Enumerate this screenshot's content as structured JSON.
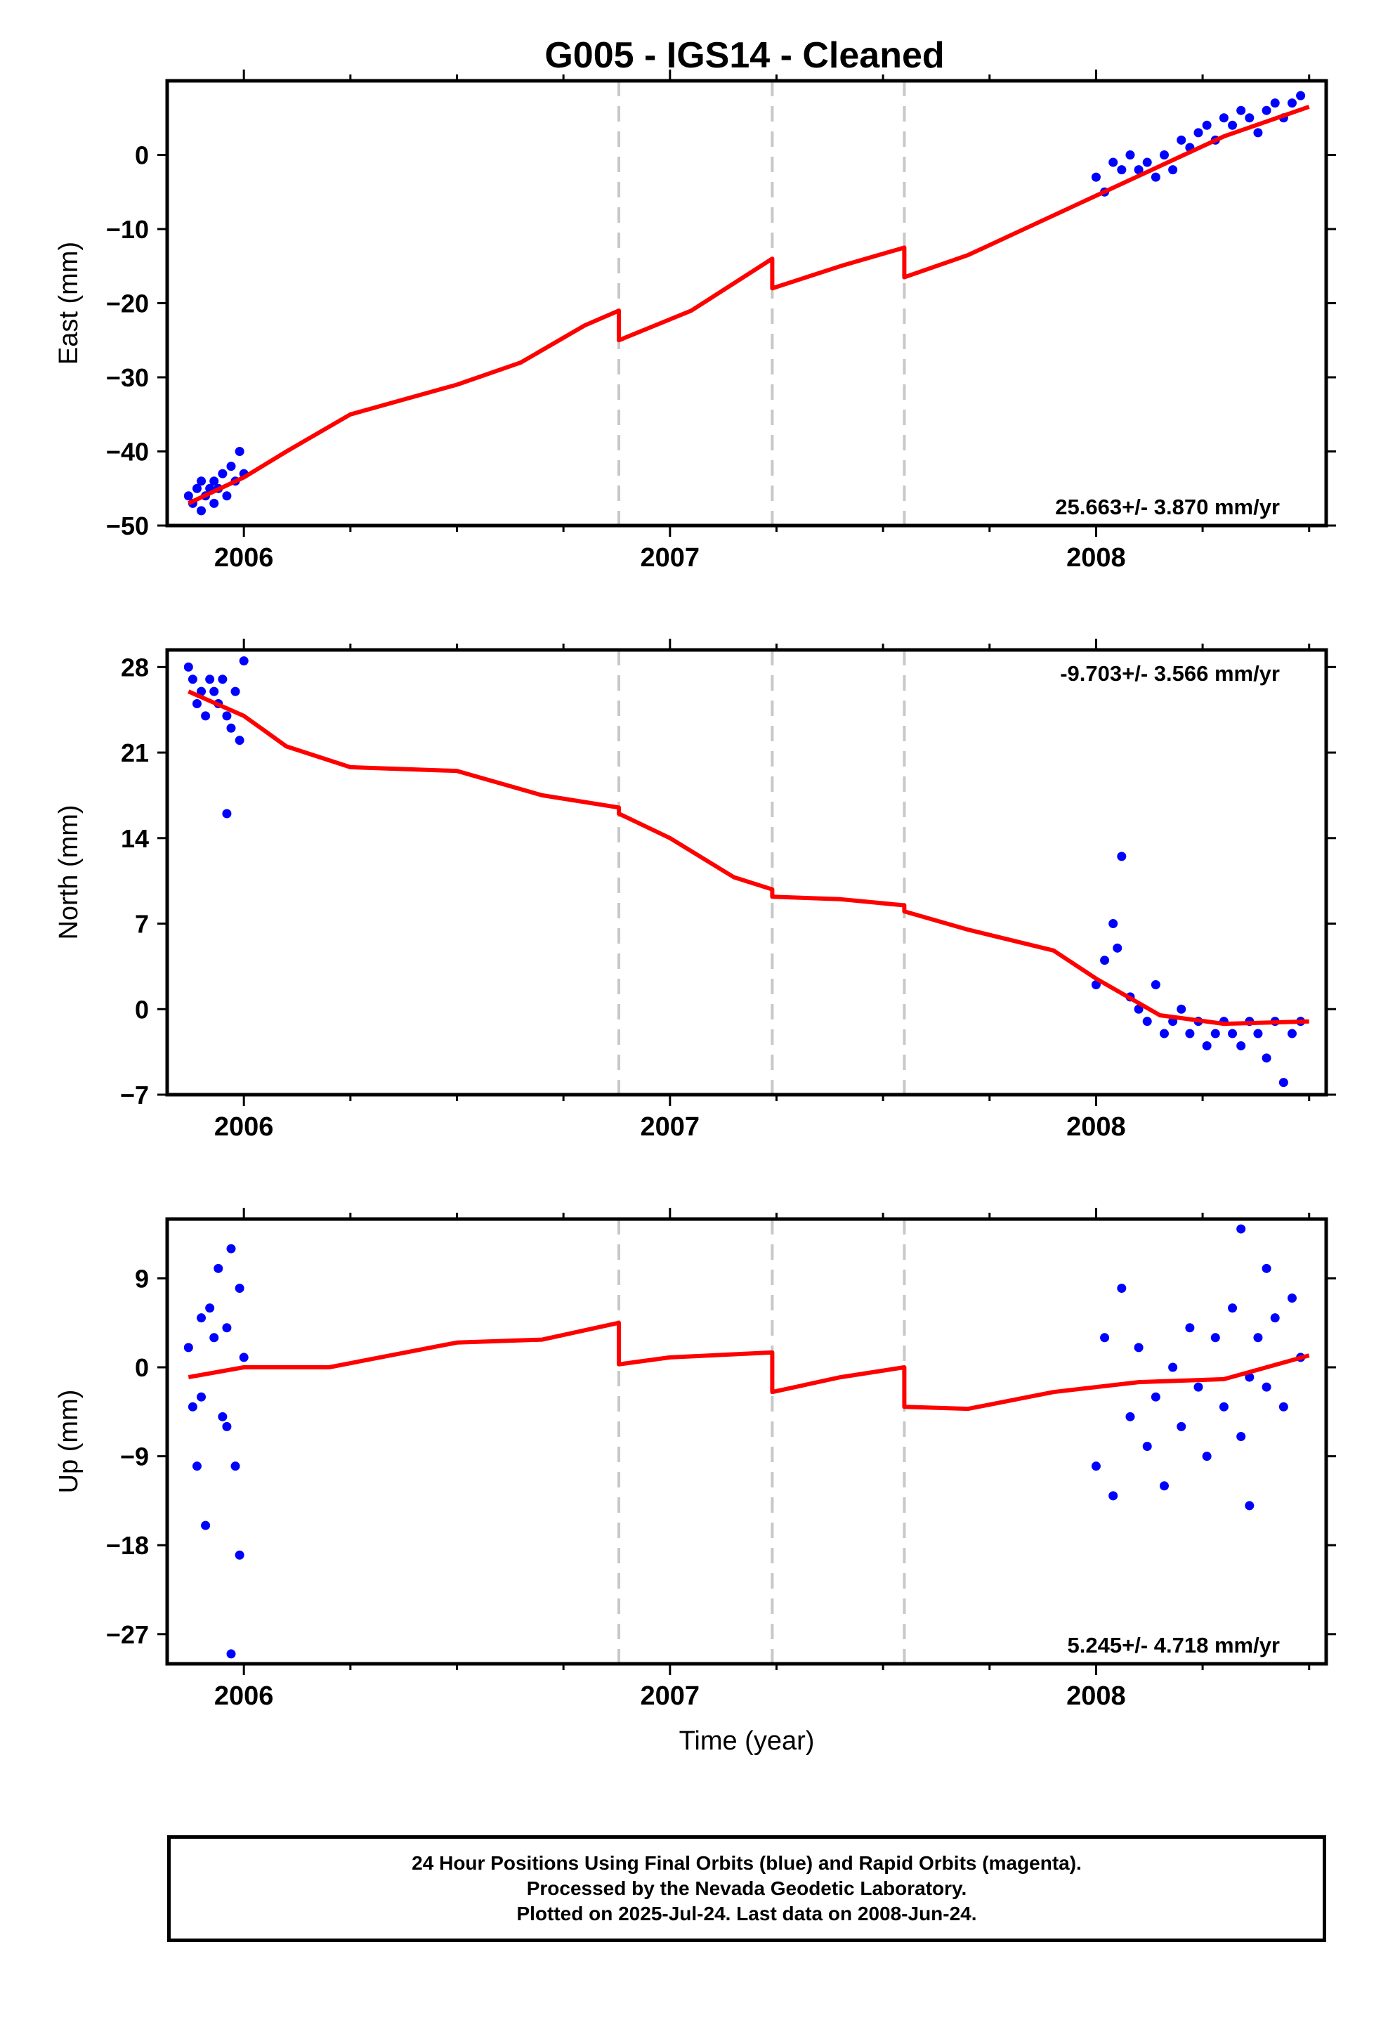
{
  "title": "G005  - IGS14 - Cleaned",
  "colors": {
    "observations": "#0000ff",
    "model": "#ff0000",
    "events": "#c8c8c8",
    "frame": "#000000"
  },
  "footer": {
    "line1": "24 Hour Positions Using Final Orbits (blue) and Rapid Orbits (magenta).",
    "line2": "Processed by the Nevada Geodetic Laboratory.",
    "line3": "Plotted on 2025-Jul-24. Last data on 2008-Jun-24."
  },
  "chart_data": [
    {
      "type": "scatter",
      "ylabel": "East (mm)",
      "xlabel": "",
      "xlim": [
        2005.82,
        2008.54
      ],
      "ylim": [
        -50,
        10
      ],
      "yticks": [
        -50,
        -40,
        -30,
        -20,
        -10,
        0
      ],
      "xticks": [
        2006,
        2007,
        2008
      ],
      "xtick_labels": [
        "2006",
        "2007",
        "2008"
      ],
      "event_lines": [
        2006.88,
        2007.24,
        2007.55
      ],
      "rate_label": "25.663+/- 3.870 mm/yr",
      "rate_label_position": "bottom-right",
      "series": [
        {
          "kind": "observations",
          "x": [
            2005.87,
            2005.88,
            2005.89,
            2005.9,
            2005.9,
            2005.91,
            2005.92,
            2005.93,
            2005.93,
            2005.94,
            2005.95,
            2005.96,
            2005.97,
            2005.98,
            2005.99,
            2006.0,
            2008.0,
            2008.02,
            2008.04,
            2008.06,
            2008.08,
            2008.1,
            2008.12,
            2008.14,
            2008.16,
            2008.18,
            2008.2,
            2008.22,
            2008.24,
            2008.26,
            2008.28,
            2008.3,
            2008.32,
            2008.34,
            2008.36,
            2008.38,
            2008.4,
            2008.42,
            2008.44,
            2008.46,
            2008.48
          ],
          "y": [
            -46,
            -47,
            -45,
            -48,
            -44,
            -46,
            -45,
            -47,
            -44,
            -45,
            -43,
            -46,
            -42,
            -44,
            -40,
            -43,
            -3,
            -5,
            -1,
            -2,
            0,
            -2,
            -1,
            -3,
            0,
            -2,
            2,
            1,
            3,
            4,
            2,
            5,
            4,
            6,
            5,
            3,
            6,
            7,
            5,
            7,
            8
          ]
        },
        {
          "kind": "model",
          "x": [
            2005.87,
            2006.0,
            2006.1,
            2006.25,
            2006.5,
            2006.65,
            2006.8,
            2006.88,
            2006.88,
            2007.05,
            2007.24,
            2007.24,
            2007.4,
            2007.55,
            2007.55,
            2007.7,
            2007.85,
            2008.0,
            2008.15,
            2008.3,
            2008.5
          ],
          "y": [
            -47,
            -43.5,
            -40,
            -35,
            -31,
            -28,
            -23,
            -21,
            -25,
            -21,
            -14,
            -18,
            -15,
            -12.5,
            -16.5,
            -13.5,
            -9.5,
            -5.5,
            -1.5,
            2.5,
            6.5
          ]
        }
      ]
    },
    {
      "type": "scatter",
      "ylabel": "North (mm)",
      "xlabel": "",
      "xlim": [
        2005.82,
        2008.54
      ],
      "ylim": [
        -7,
        29.4
      ],
      "yticks": [
        -7,
        0,
        7,
        14,
        21,
        28
      ],
      "xticks": [
        2006,
        2007,
        2008
      ],
      "xtick_labels": [
        "2006",
        "2007",
        "2008"
      ],
      "event_lines": [
        2006.88,
        2007.24,
        2007.55
      ],
      "rate_label": "-9.703+/- 3.566 mm/yr",
      "rate_label_position": "top-right",
      "series": [
        {
          "kind": "observations",
          "x": [
            2005.87,
            2005.88,
            2005.89,
            2005.9,
            2005.91,
            2005.92,
            2005.93,
            2005.94,
            2005.95,
            2005.96,
            2005.97,
            2005.98,
            2005.99,
            2006.0,
            2005.96,
            2008.0,
            2008.02,
            2008.04,
            2008.05,
            2008.06,
            2008.08,
            2008.1,
            2008.12,
            2008.14,
            2008.16,
            2008.18,
            2008.2,
            2008.22,
            2008.24,
            2008.26,
            2008.28,
            2008.3,
            2008.32,
            2008.34,
            2008.36,
            2008.38,
            2008.4,
            2008.42,
            2008.44,
            2008.46,
            2008.48
          ],
          "y": [
            28,
            27,
            25,
            26,
            24,
            27,
            26,
            25,
            27,
            24,
            23,
            26,
            22,
            28.5,
            16,
            2,
            4,
            7,
            5,
            12.5,
            1,
            0,
            -1,
            2,
            -2,
            -1,
            0,
            -2,
            -1,
            -3,
            -2,
            -1,
            -2,
            -3,
            -1,
            -2,
            -4,
            -1,
            -6,
            -2,
            -1
          ]
        },
        {
          "kind": "model",
          "x": [
            2005.87,
            2006.0,
            2006.1,
            2006.25,
            2006.5,
            2006.7,
            2006.88,
            2006.88,
            2007.0,
            2007.15,
            2007.24,
            2007.24,
            2007.4,
            2007.55,
            2007.55,
            2007.7,
            2007.9,
            2008.0,
            2008.15,
            2008.3,
            2008.5
          ],
          "y": [
            26,
            24,
            21.5,
            19.8,
            19.5,
            17.5,
            16.5,
            16,
            14,
            10.8,
            9.8,
            9.2,
            9,
            8.5,
            8,
            6.5,
            4.8,
            2.5,
            -0.5,
            -1.2,
            -1
          ]
        }
      ]
    },
    {
      "type": "scatter",
      "ylabel": "Up (mm)",
      "xlabel": "Time (year)",
      "xlim": [
        2005.82,
        2008.54
      ],
      "ylim": [
        -30,
        15
      ],
      "yticks": [
        -27,
        -18,
        -9,
        0,
        9
      ],
      "xticks": [
        2006,
        2007,
        2008
      ],
      "xtick_labels": [
        "2006",
        "2007",
        "2008"
      ],
      "event_lines": [
        2006.88,
        2007.24,
        2007.55
      ],
      "rate_label": "5.245+/- 4.718 mm/yr",
      "rate_label_position": "bottom-right",
      "series": [
        {
          "kind": "observations",
          "x": [
            2005.87,
            2005.88,
            2005.89,
            2005.9,
            2005.91,
            2005.92,
            2005.93,
            2005.94,
            2005.95,
            2005.96,
            2005.97,
            2005.98,
            2005.99,
            2006.0,
            2005.97,
            2005.99,
            2005.9,
            2005.96,
            2008.0,
            2008.02,
            2008.04,
            2008.06,
            2008.08,
            2008.1,
            2008.12,
            2008.14,
            2008.16,
            2008.18,
            2008.2,
            2008.22,
            2008.24,
            2008.26,
            2008.28,
            2008.3,
            2008.32,
            2008.34,
            2008.36,
            2008.38,
            2008.4,
            2008.42,
            2008.44,
            2008.46,
            2008.48,
            2008.34,
            2008.36,
            2008.4
          ],
          "y": [
            2,
            -4,
            -10,
            5,
            -16,
            6,
            3,
            10,
            -5,
            4,
            12,
            -10,
            -19,
            1,
            -29,
            8,
            -3,
            -6,
            -10,
            3,
            -13,
            8,
            -5,
            2,
            -8,
            -3,
            -12,
            0,
            -6,
            4,
            -2,
            -9,
            3,
            -4,
            6,
            -7,
            -1,
            3,
            -2,
            5,
            -4,
            7,
            1,
            14,
            -14,
            10
          ]
        },
        {
          "kind": "model",
          "x": [
            2005.87,
            2006.0,
            2006.2,
            2006.5,
            2006.7,
            2006.88,
            2006.88,
            2007.0,
            2007.24,
            2007.24,
            2007.4,
            2007.55,
            2007.55,
            2007.7,
            2007.9,
            2008.1,
            2008.3,
            2008.5
          ],
          "y": [
            -1,
            0,
            0,
            2.5,
            2.8,
            4.5,
            0.3,
            1,
            1.5,
            -2.5,
            -1,
            0,
            -4,
            -4.2,
            -2.5,
            -1.5,
            -1.2,
            1.2
          ]
        }
      ]
    }
  ]
}
